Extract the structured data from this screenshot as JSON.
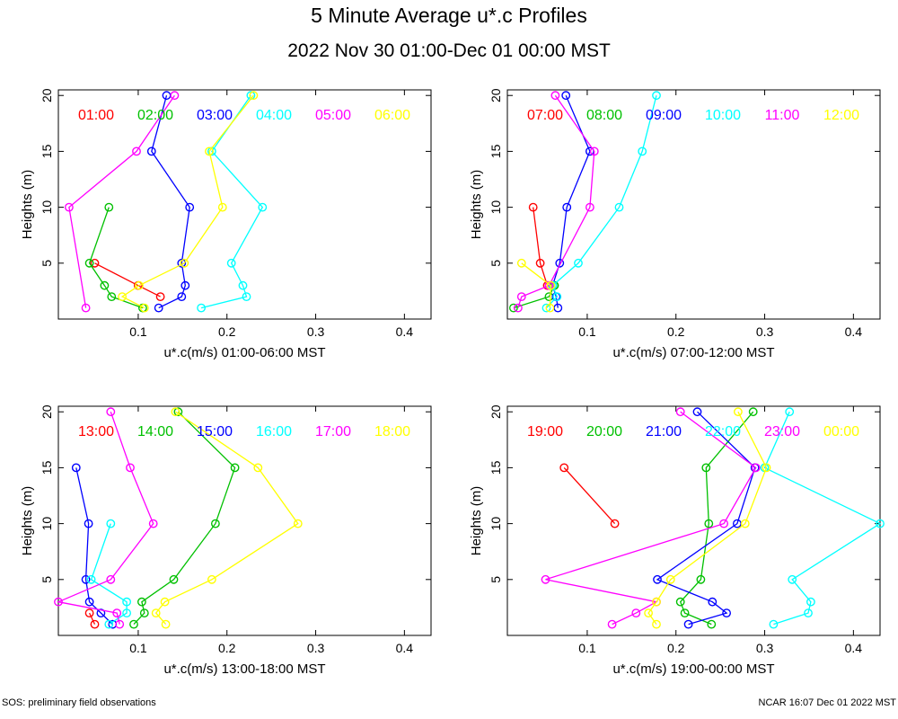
{
  "title": "5 Minute Average u*.c Profiles",
  "subtitle": "2022 Nov 30 01:00-Dec 01 00:00 MST",
  "footer_left": "SOS: preliminary field observations",
  "footer_right": "NCAR 16:07 Dec 01 2022 MST",
  "colors": [
    "#ff0000",
    "#00c000",
    "#0000ff",
    "#00ffff",
    "#ff00ff",
    "#ffff00"
  ],
  "chart_data": [
    {
      "type": "line",
      "xlabel": "u*.c(m/s) 01:00-06:00 MST",
      "ylabel": "Heights (m)",
      "xlim": [
        0.01,
        0.43
      ],
      "ylim": [
        0,
        20.5
      ],
      "xticks": [
        0.1,
        0.2,
        0.3,
        0.4
      ],
      "yticks": [
        5,
        10,
        15,
        20
      ],
      "xtick_labels": [
        "0.1",
        "0.2",
        "0.3",
        "0.4"
      ],
      "ytick_labels": [
        "5",
        "10",
        "15",
        "20"
      ],
      "series": [
        {
          "name": "01:00",
          "x": [
            0.051,
            0.1,
            0.125
          ],
          "y": [
            5,
            3,
            2
          ]
        },
        {
          "name": "02:00",
          "x": [
            0.105,
            0.07,
            0.062,
            0.045,
            0.067
          ],
          "y": [
            1,
            2,
            3,
            5,
            10
          ]
        },
        {
          "name": "03:00",
          "x": [
            0.123,
            0.149,
            0.153,
            0.149,
            0.158,
            0.115,
            0.132
          ],
          "y": [
            1,
            2,
            3,
            5,
            10,
            15,
            20
          ]
        },
        {
          "name": "04:00",
          "x": [
            0.171,
            0.222,
            0.218,
            0.205,
            0.24,
            0.183,
            0.227
          ],
          "y": [
            1,
            2,
            3,
            5,
            10,
            15,
            20
          ]
        },
        {
          "name": "05:00",
          "x": [
            0.041,
            0.022,
            0.098,
            0.141
          ],
          "y": [
            1,
            10,
            15,
            20
          ]
        },
        {
          "name": "06:00",
          "x": [
            0.107,
            0.082,
            0.101,
            0.152,
            0.195,
            0.18,
            0.23
          ],
          "y": [
            1,
            2,
            3,
            5,
            10,
            15,
            20
          ]
        }
      ]
    },
    {
      "type": "line",
      "xlabel": "u*.c(m/s) 07:00-12:00 MST",
      "ylabel": "Heights (m)",
      "xlim": [
        0.01,
        0.43
      ],
      "ylim": [
        0,
        20.5
      ],
      "xticks": [
        0.1,
        0.2,
        0.3,
        0.4
      ],
      "yticks": [
        5,
        10,
        15,
        20
      ],
      "xtick_labels": [
        "0.1",
        "0.2",
        "0.3",
        "0.4"
      ],
      "ytick_labels": [
        "5",
        "10",
        "15",
        "20"
      ],
      "series": [
        {
          "name": "07:00",
          "x": [
            0.055,
            0.047,
            0.039
          ],
          "y": [
            3,
            5,
            10
          ]
        },
        {
          "name": "08:00",
          "x": [
            0.017,
            0.057,
            0.063,
            0.063
          ],
          "y": [
            1,
            2,
            3,
            3
          ]
        },
        {
          "name": "09:00",
          "x": [
            0.067,
            0.065,
            0.061,
            0.069,
            0.077,
            0.103,
            0.076
          ],
          "y": [
            1,
            2,
            3,
            5,
            10,
            15,
            20
          ]
        },
        {
          "name": "10:00",
          "x": [
            0.054,
            0.066,
            0.061,
            0.09,
            0.136,
            0.162,
            0.178
          ],
          "y": [
            1,
            2,
            3,
            5,
            10,
            15,
            20
          ]
        },
        {
          "name": "11:00",
          "x": [
            0.022,
            0.026,
            0.057,
            0.103,
            0.108,
            0.064
          ],
          "y": [
            1,
            2,
            3,
            10,
            15,
            20
          ]
        },
        {
          "name": "12:00",
          "x": [
            0.058,
            0.059,
            0.026
          ],
          "y": [
            1,
            3,
            5
          ]
        }
      ]
    },
    {
      "type": "line",
      "xlabel": "u*.c(m/s) 13:00-18:00 MST",
      "ylabel": "Heights (m)",
      "xlim": [
        0.01,
        0.43
      ],
      "ylim": [
        0,
        20.5
      ],
      "xticks": [
        0.1,
        0.2,
        0.3,
        0.4
      ],
      "yticks": [
        5,
        10,
        15,
        20
      ],
      "xtick_labels": [
        "0.1",
        "0.2",
        "0.3",
        "0.4"
      ],
      "ytick_labels": [
        "5",
        "10",
        "15",
        "20"
      ],
      "series": [
        {
          "name": "13:00",
          "x": [
            0.051,
            0.045
          ],
          "y": [
            1,
            2
          ]
        },
        {
          "name": "14:00",
          "x": [
            0.095,
            0.107,
            0.104,
            0.14,
            0.187,
            0.209,
            0.145
          ],
          "y": [
            1,
            2,
            3,
            5,
            10,
            15,
            20
          ]
        },
        {
          "name": "15:00",
          "x": [
            0.071,
            0.058,
            0.045,
            0.041,
            0.044,
            0.03
          ],
          "y": [
            1,
            2,
            3,
            5,
            10,
            15
          ]
        },
        {
          "name": "16:00",
          "x": [
            0.067,
            0.087,
            0.087,
            0.047,
            0.069
          ],
          "y": [
            1,
            2,
            3,
            5,
            10
          ]
        },
        {
          "name": "17:00",
          "x": [
            0.079,
            0.076,
            0.01,
            0.069,
            0.117,
            0.091,
            0.069
          ],
          "y": [
            1,
            2,
            3,
            5,
            10,
            15,
            20
          ]
        },
        {
          "name": "18:00",
          "x": [
            0.131,
            0.12,
            0.13,
            0.183,
            0.28,
            0.235,
            0.142
          ],
          "y": [
            1,
            2,
            3,
            5,
            10,
            15,
            20
          ]
        }
      ]
    },
    {
      "type": "line",
      "xlabel": "u*.c(m/s) 19:00-00:00 MST",
      "ylabel": "Heights (m)",
      "xlim": [
        0.01,
        0.43
      ],
      "ylim": [
        0,
        20.5
      ],
      "xticks": [
        0.1,
        0.2,
        0.3,
        0.4
      ],
      "yticks": [
        5,
        10,
        15,
        20
      ],
      "xtick_labels": [
        "0.1",
        "0.2",
        "0.3",
        "0.4"
      ],
      "ytick_labels": [
        "5",
        "10",
        "15",
        "20"
      ],
      "series": [
        {
          "name": "19:00",
          "x": [
            0.131,
            0.074
          ],
          "y": [
            10,
            15
          ]
        },
        {
          "name": "20:00",
          "x": [
            0.24,
            0.21,
            0.205,
            0.228,
            0.237,
            0.234,
            0.287
          ],
          "y": [
            1,
            2,
            3,
            5,
            10,
            15,
            20
          ]
        },
        {
          "name": "21:00",
          "x": [
            0.214,
            0.257,
            0.241,
            0.179,
            0.269,
            0.289,
            0.224
          ],
          "y": [
            1,
            2,
            3,
            5,
            10,
            15,
            20
          ]
        },
        {
          "name": "22:00",
          "x": [
            0.31,
            0.349,
            0.352,
            0.331,
            0.43,
            0.3,
            0.328
          ],
          "y": [
            1,
            2,
            3,
            5,
            10,
            15,
            20
          ]
        },
        {
          "name": "23:00",
          "x": [
            0.128,
            0.155,
            0.178,
            0.053,
            0.254,
            0.29,
            0.205
          ],
          "y": [
            1,
            2,
            3,
            5,
            10,
            15,
            20
          ]
        },
        {
          "name": "00:00",
          "x": [
            0.178,
            0.169,
            0.178,
            0.194,
            0.278,
            0.302,
            0.27
          ],
          "y": [
            1,
            2,
            3,
            5,
            10,
            15,
            20
          ]
        }
      ]
    }
  ]
}
